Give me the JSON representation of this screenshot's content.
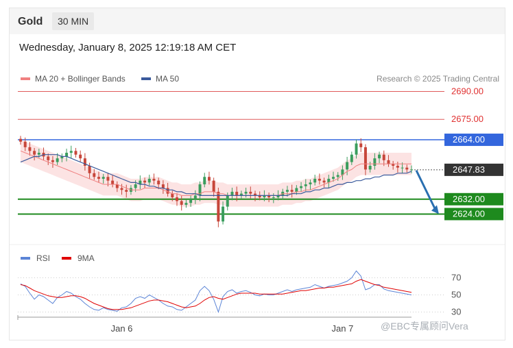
{
  "header": {
    "symbol": "Gold",
    "timeframe": "30 MIN"
  },
  "datetime": "Wednesday, January 8, 2025 12:19:18 AM CET",
  "legend": {
    "items": [
      {
        "label": "MA 20 + Bollinger Bands",
        "color": "#f08080"
      },
      {
        "label": "MA 50",
        "color": "#3a5a9c"
      }
    ],
    "credit": "Research © 2025 Trading Central"
  },
  "rsi_legend": {
    "items": [
      {
        "label": "RSI",
        "color": "#5b84d6"
      },
      {
        "label": "9MA",
        "color": "#e00000"
      }
    ]
  },
  "colors": {
    "up": "#3a9d5d",
    "down": "#c7463a",
    "resistance": "#e05a5a",
    "pivot": "#3366dd",
    "support": "#1e8a1e",
    "current": "#333333",
    "arrow": "#2a6fb0"
  },
  "watermark": "@EBC专属顾问Vera",
  "chart_data": [
    {
      "type": "candlestick",
      "ylim": [
        2612,
        2695
      ],
      "levels": [
        {
          "label": "2690.00",
          "value": 2690.0,
          "kind": "resistance"
        },
        {
          "label": "2675.00",
          "value": 2675.0,
          "kind": "resistance"
        },
        {
          "label": "2664.00",
          "value": 2664.0,
          "kind": "pivot"
        },
        {
          "label": "2647.83",
          "value": 2647.83,
          "kind": "current"
        },
        {
          "label": "2632.00",
          "value": 2632.0,
          "kind": "support"
        },
        {
          "label": "2624.00",
          "value": 2624.0,
          "kind": "support"
        }
      ],
      "x_ticks": [
        {
          "label": "Jan 6",
          "index": 22
        },
        {
          "label": "Jan 7",
          "index": 70
        }
      ],
      "close": [
        2663,
        2660,
        2658,
        2656,
        2657,
        2655,
        2653,
        2652,
        2654,
        2655,
        2657,
        2658,
        2656,
        2654,
        2650,
        2646,
        2644,
        2643,
        2644,
        2642,
        2640,
        2638,
        2637,
        2636,
        2638,
        2640,
        2642,
        2641,
        2643,
        2642,
        2640,
        2638,
        2635,
        2633,
        2631,
        2629,
        2630,
        2632,
        2634,
        2640,
        2644,
        2642,
        2636,
        2620,
        2628,
        2634,
        2636,
        2634,
        2635,
        2636,
        2635,
        2634,
        2633,
        2634,
        2633,
        2633,
        2634,
        2636,
        2637,
        2636,
        2638,
        2639,
        2640,
        2641,
        2643,
        2642,
        2641,
        2643,
        2644,
        2645,
        2648,
        2652,
        2656,
        2662,
        2660,
        2648,
        2650,
        2654,
        2656,
        2653,
        2651,
        2650,
        2649,
        2649,
        2648,
        2648
      ],
      "ma20": [
        2658,
        2657,
        2656,
        2655,
        2654,
        2653,
        2652,
        2651,
        2650,
        2649,
        2648,
        2647,
        2646,
        2645,
        2644,
        2643,
        2642,
        2641,
        2640,
        2640,
        2640,
        2640,
        2639,
        2638,
        2637,
        2637,
        2637,
        2638,
        2638,
        2638,
        2638,
        2637,
        2636,
        2635,
        2635,
        2634,
        2634,
        2634,
        2635,
        2635,
        2636,
        2636,
        2636,
        2635,
        2635,
        2634,
        2634,
        2634,
        2634,
        2634,
        2634,
        2634,
        2634,
        2634,
        2634,
        2634,
        2634,
        2635,
        2635,
        2635,
        2636,
        2636,
        2637,
        2637,
        2638,
        2639,
        2640,
        2641,
        2642,
        2643,
        2645,
        2647,
        2648,
        2650,
        2651,
        2651,
        2651,
        2651,
        2651,
        2651,
        2651,
        2651,
        2651,
        2651,
        2651,
        2651
      ],
      "ma50": [
        2652,
        2653,
        2654,
        2655,
        2655,
        2656,
        2656,
        2656,
        2656,
        2655,
        2655,
        2654,
        2653,
        2652,
        2651,
        2650,
        2649,
        2648,
        2647,
        2646,
        2645,
        2644,
        2643,
        2642,
        2641,
        2641,
        2640,
        2640,
        2639,
        2639,
        2638,
        2638,
        2637,
        2637,
        2636,
        2636,
        2635,
        2635,
        2635,
        2634,
        2634,
        2634,
        2634,
        2634,
        2634,
        2634,
        2634,
        2634,
        2634,
        2634,
        2634,
        2634,
        2634,
        2634,
        2634,
        2634,
        2634,
        2634,
        2634,
        2635,
        2635,
        2635,
        2636,
        2636,
        2637,
        2637,
        2638,
        2638,
        2639,
        2640,
        2640,
        2641,
        2641,
        2642,
        2642,
        2643,
        2643,
        2644,
        2644,
        2645,
        2645,
        2645,
        2646,
        2646,
        2646,
        2647
      ]
    },
    {
      "type": "line",
      "title": "RSI",
      "ylim": [
        20,
        80
      ],
      "y_ticks": [
        70,
        50,
        30
      ],
      "rsi": [
        63,
        60,
        52,
        45,
        50,
        48,
        44,
        40,
        47,
        50,
        54,
        52,
        48,
        45,
        40,
        36,
        33,
        32,
        35,
        33,
        32,
        31,
        35,
        36,
        40,
        46,
        48,
        46,
        50,
        47,
        44,
        40,
        37,
        36,
        33,
        32,
        36,
        40,
        44,
        55,
        60,
        55,
        45,
        30,
        48,
        54,
        56,
        52,
        54,
        55,
        53,
        50,
        49,
        51,
        50,
        50,
        52,
        54,
        56,
        54,
        56,
        57,
        58,
        59,
        62,
        60,
        58,
        60,
        61,
        62,
        64,
        66,
        70,
        78,
        72,
        56,
        58,
        62,
        62,
        57,
        55,
        54,
        53,
        52,
        51,
        50
      ],
      "ma9": [
        62,
        61,
        58,
        55,
        53,
        51,
        49,
        48,
        47,
        47,
        48,
        49,
        49,
        48,
        46,
        43,
        40,
        38,
        36,
        34,
        33,
        33,
        33,
        34,
        35,
        37,
        39,
        41,
        43,
        44,
        44,
        43,
        42,
        40,
        38,
        36,
        35,
        36,
        37,
        40,
        44,
        47,
        48,
        46,
        45,
        47,
        49,
        51,
        52,
        52,
        52,
        52,
        51,
        51,
        51,
        51,
        51,
        51,
        52,
        53,
        54,
        55,
        55,
        56,
        57,
        58,
        58,
        59,
        59,
        60,
        61,
        62,
        63,
        66,
        68,
        66,
        64,
        62,
        61,
        59,
        58,
        57,
        56,
        55,
        54,
        53
      ]
    }
  ]
}
